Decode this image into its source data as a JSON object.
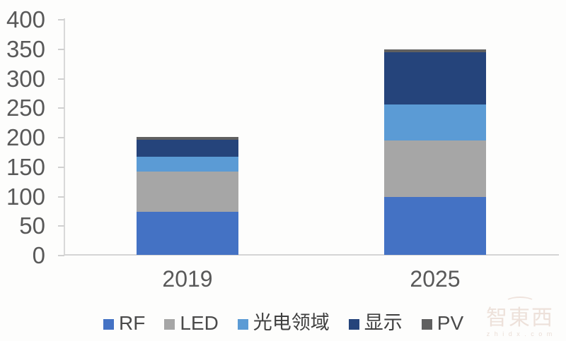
{
  "chart_data": {
    "type": "bar",
    "stacked": true,
    "title": "",
    "xlabel": "",
    "ylabel": "",
    "categories": [
      "2019",
      "2025"
    ],
    "series": [
      {
        "name": "RF",
        "color": "#4472C4",
        "values": [
          73,
          98
        ]
      },
      {
        "name": "LED",
        "color": "#A6A6A6",
        "values": [
          68,
          96
        ]
      },
      {
        "name": "光电领域",
        "color": "#5B9BD5",
        "values": [
          25,
          61
        ]
      },
      {
        "name": "显示",
        "color": "#25447B",
        "values": [
          29,
          89
        ]
      },
      {
        "name": "PV",
        "color": "#606060",
        "values": [
          5,
          4
        ]
      }
    ],
    "ylim": [
      0,
      400
    ],
    "yticks": [
      0,
      50,
      100,
      150,
      200,
      250,
      300,
      350,
      400
    ],
    "grid": false,
    "legend_position": "bottom",
    "axis_text_color": "#595959"
  },
  "watermark": {
    "brand": "智東西",
    "site": "z h i d x . c o m"
  }
}
